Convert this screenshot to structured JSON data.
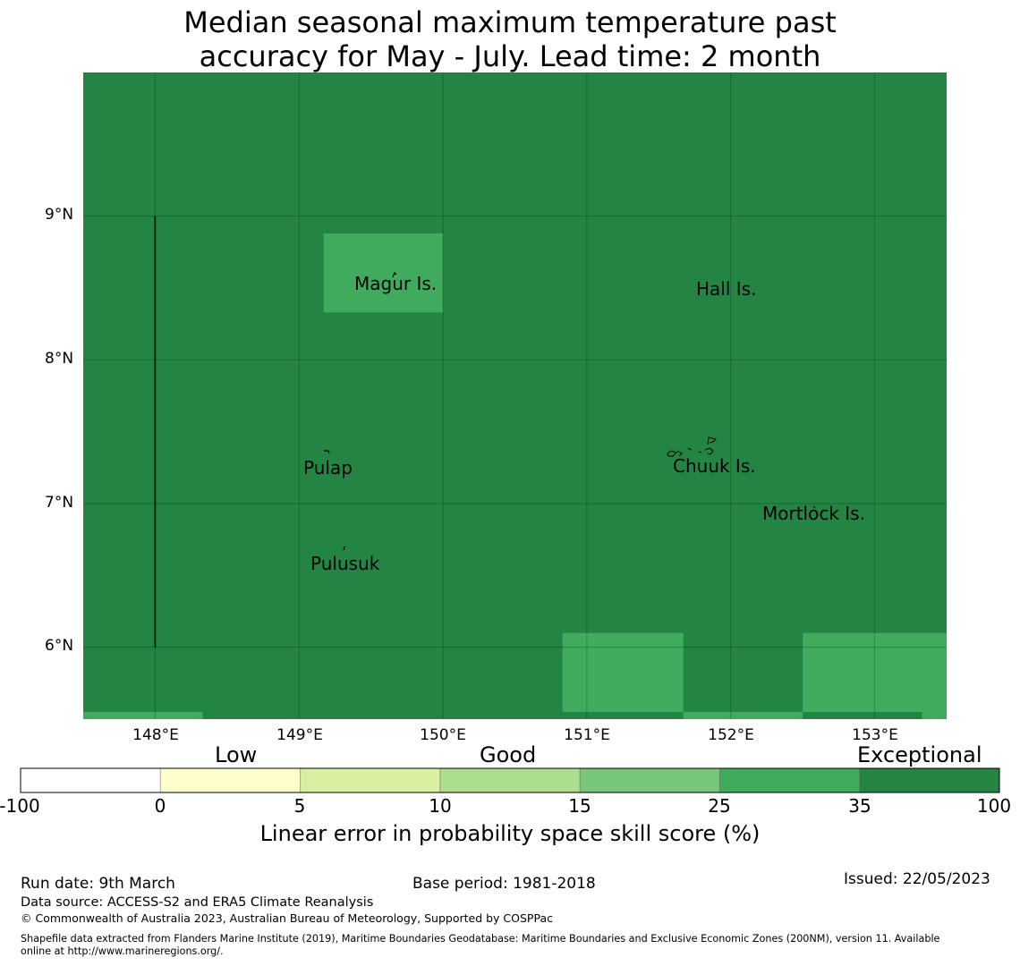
{
  "title": {
    "line1": "Median seasonal maximum temperature past",
    "line2": "accuracy for May - July. Lead time: 2 month"
  },
  "map": {
    "lon_range": [
      147.5,
      153.5
    ],
    "lat_range": [
      5.5,
      10.0
    ],
    "lat_ticks": [
      "9°N",
      "8°N",
      "7°N",
      "6°N"
    ],
    "lon_ticks": [
      "148°E",
      "149°E",
      "150°E",
      "151°E",
      "152°E",
      "153°E"
    ],
    "background_category": "Exceptional",
    "cells": [
      {
        "lon": [
          149.17,
          150.0
        ],
        "lat": [
          8.33,
          8.88
        ],
        "category": "Good-high"
      },
      {
        "lon": [
          150.83,
          151.67
        ],
        "lat": [
          5.55,
          6.1
        ],
        "category": "Good-high"
      },
      {
        "lon": [
          152.5,
          153.5
        ],
        "lat": [
          5.55,
          6.1
        ],
        "category": "Good-high"
      },
      {
        "lon": [
          147.5,
          148.33
        ],
        "lat": [
          5.5,
          5.55
        ],
        "category": "Good-high"
      },
      {
        "lon": [
          151.67,
          152.5
        ],
        "lat": [
          5.5,
          5.55
        ],
        "category": "Good-high"
      },
      {
        "lon": [
          153.33,
          153.5
        ],
        "lat": [
          5.5,
          5.55
        ],
        "category": "Good-high"
      }
    ],
    "boundary_line": {
      "lon": 148.0,
      "lat": [
        6.0,
        9.0
      ]
    },
    "places": [
      {
        "name": "Magur Is.",
        "lon": 149.68,
        "lat": 8.53
      },
      {
        "name": "Hall Is.",
        "lon": 151.97,
        "lat": 8.49
      },
      {
        "name": "Pulap",
        "lon": 149.21,
        "lat": 7.24
      },
      {
        "name": "Chuuk Is.",
        "lon": 151.88,
        "lat": 7.25
      },
      {
        "name": "Mortlock Is.",
        "lon": 152.59,
        "lat": 6.92
      },
      {
        "name": "Pulusuk",
        "lon": 149.32,
        "lat": 6.58
      }
    ]
  },
  "colorbar": {
    "categories": [
      "Low",
      "Good",
      "Exceptional"
    ],
    "ticks": [
      "-100",
      "0",
      "5",
      "10",
      "15",
      "25",
      "35",
      "100"
    ],
    "colors": [
      "#ffffff",
      "#ffffcc",
      "#d9f0a3",
      "#addd8e",
      "#78c679",
      "#41ab5d",
      "#238443"
    ],
    "title": "Linear error in probability space skill score (%)"
  },
  "footer": {
    "run_date": "Run date: 9th March",
    "base_period": "Base period: 1981-2018",
    "issued": "Issued: 22/05/2023",
    "data_source": "Data source: ACCESS-S2 and ERA5 Climate Reanalysis",
    "copyright": "© Commonwealth of Australia 2023, Australian Bureau of Meteorology, Supported by COSPPac",
    "shapefile_line1": "Shapefile data extracted from Flanders Marine Institute (2019), Maritime Boundaries Geodatabase: Maritime Boundaries and Exclusive Economic Zones (200NM), version 11. Available",
    "shapefile_line2": "online at http://www.marineregions.org/."
  }
}
